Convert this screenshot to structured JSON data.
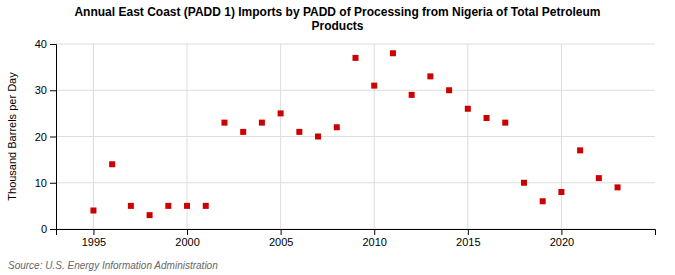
{
  "chart_data": {
    "type": "scatter",
    "title": "Annual East Coast (PADD 1) Imports by PADD of Processing from Nigeria of Total Petroleum\nProducts",
    "ylabel": "Thousand Barrels per Day",
    "source": "Source: U.S. Energy Information Administration",
    "x": [
      1995,
      1996,
      1997,
      1998,
      1999,
      2000,
      2001,
      2002,
      2003,
      2004,
      2005,
      2006,
      2007,
      2008,
      2009,
      2010,
      2011,
      2012,
      2013,
      2014,
      2015,
      2016,
      2017,
      2018,
      2019,
      2020,
      2021,
      2022,
      2023
    ],
    "values": [
      4,
      14,
      5,
      3,
      5,
      5,
      5,
      23,
      21,
      23,
      25,
      21,
      20,
      22,
      37,
      31,
      38,
      29,
      33,
      30,
      26,
      24,
      23,
      10,
      6,
      8,
      17,
      11,
      9
    ],
    "color": "#cc0000",
    "marker": "square",
    "xlim": [
      1993,
      2025
    ],
    "ylim": [
      0,
      40
    ],
    "xticks": [
      1995,
      2000,
      2005,
      2010,
      2015,
      2020
    ],
    "yticks": [
      0,
      10,
      20,
      30,
      40
    ],
    "grid": true
  }
}
